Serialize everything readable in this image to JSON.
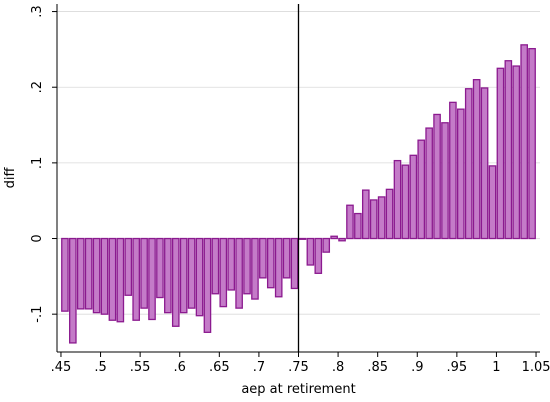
{
  "chart_data": {
    "type": "bar",
    "xlabel": "aep at retirement",
    "ylabel": "diff",
    "xlim": [
      0.445,
      1.055
    ],
    "ylim": [
      -0.15,
      0.31
    ],
    "x_ticks": [
      0.45,
      0.5,
      0.55,
      0.6,
      0.65,
      0.7,
      0.75,
      0.8,
      0.85,
      0.9,
      0.95,
      1,
      1.05
    ],
    "x_tick_labels": [
      ".45",
      ".5",
      ".55",
      ".6",
      ".65",
      ".7",
      ".75",
      ".8",
      ".85",
      ".9",
      ".95",
      "1",
      "1.05"
    ],
    "y_ticks": [
      -0.1,
      0,
      0.1,
      0.2,
      0.3
    ],
    "y_tick_labels": [
      "-.1",
      "0",
      ".1",
      ".2",
      ".3"
    ],
    "grid": "horizontal",
    "reference_line_x": 0.75,
    "bar_width": 0.008,
    "bar_color": "#c47bc8",
    "bar_edge_color": "#8b1a8f",
    "x": [
      0.455,
      0.465,
      0.475,
      0.485,
      0.495,
      0.505,
      0.515,
      0.525,
      0.535,
      0.545,
      0.555,
      0.565,
      0.575,
      0.585,
      0.595,
      0.605,
      0.615,
      0.625,
      0.635,
      0.645,
      0.655,
      0.665,
      0.675,
      0.685,
      0.695,
      0.705,
      0.715,
      0.725,
      0.735,
      0.745,
      0.755,
      0.765,
      0.775,
      0.785,
      0.795,
      0.805,
      0.815,
      0.825,
      0.835,
      0.845,
      0.855,
      0.865,
      0.875,
      0.885,
      0.895,
      0.905,
      0.915,
      0.925,
      0.935,
      0.945,
      0.955,
      0.965,
      0.975,
      0.985,
      0.995,
      1.005,
      1.015,
      1.025,
      1.035,
      1.045
    ],
    "values": [
      -0.096,
      -0.138,
      -0.093,
      -0.093,
      -0.098,
      -0.1,
      -0.108,
      -0.11,
      -0.075,
      -0.108,
      -0.092,
      -0.107,
      -0.078,
      -0.098,
      -0.116,
      -0.098,
      -0.092,
      -0.102,
      -0.124,
      -0.073,
      -0.09,
      -0.068,
      -0.092,
      -0.073,
      -0.08,
      -0.052,
      -0.065,
      -0.077,
      -0.052,
      -0.066,
      -0.001,
      -0.035,
      -0.046,
      -0.018,
      0.003,
      -0.003,
      0.044,
      0.033,
      0.064,
      0.051,
      0.055,
      0.065,
      0.103,
      0.097,
      0.11,
      0.13,
      0.146,
      0.164,
      0.153,
      0.18,
      0.171,
      0.198,
      0.21,
      0.199,
      0.096,
      0.225,
      0.235,
      0.228,
      0.256,
      0.251
    ]
  }
}
